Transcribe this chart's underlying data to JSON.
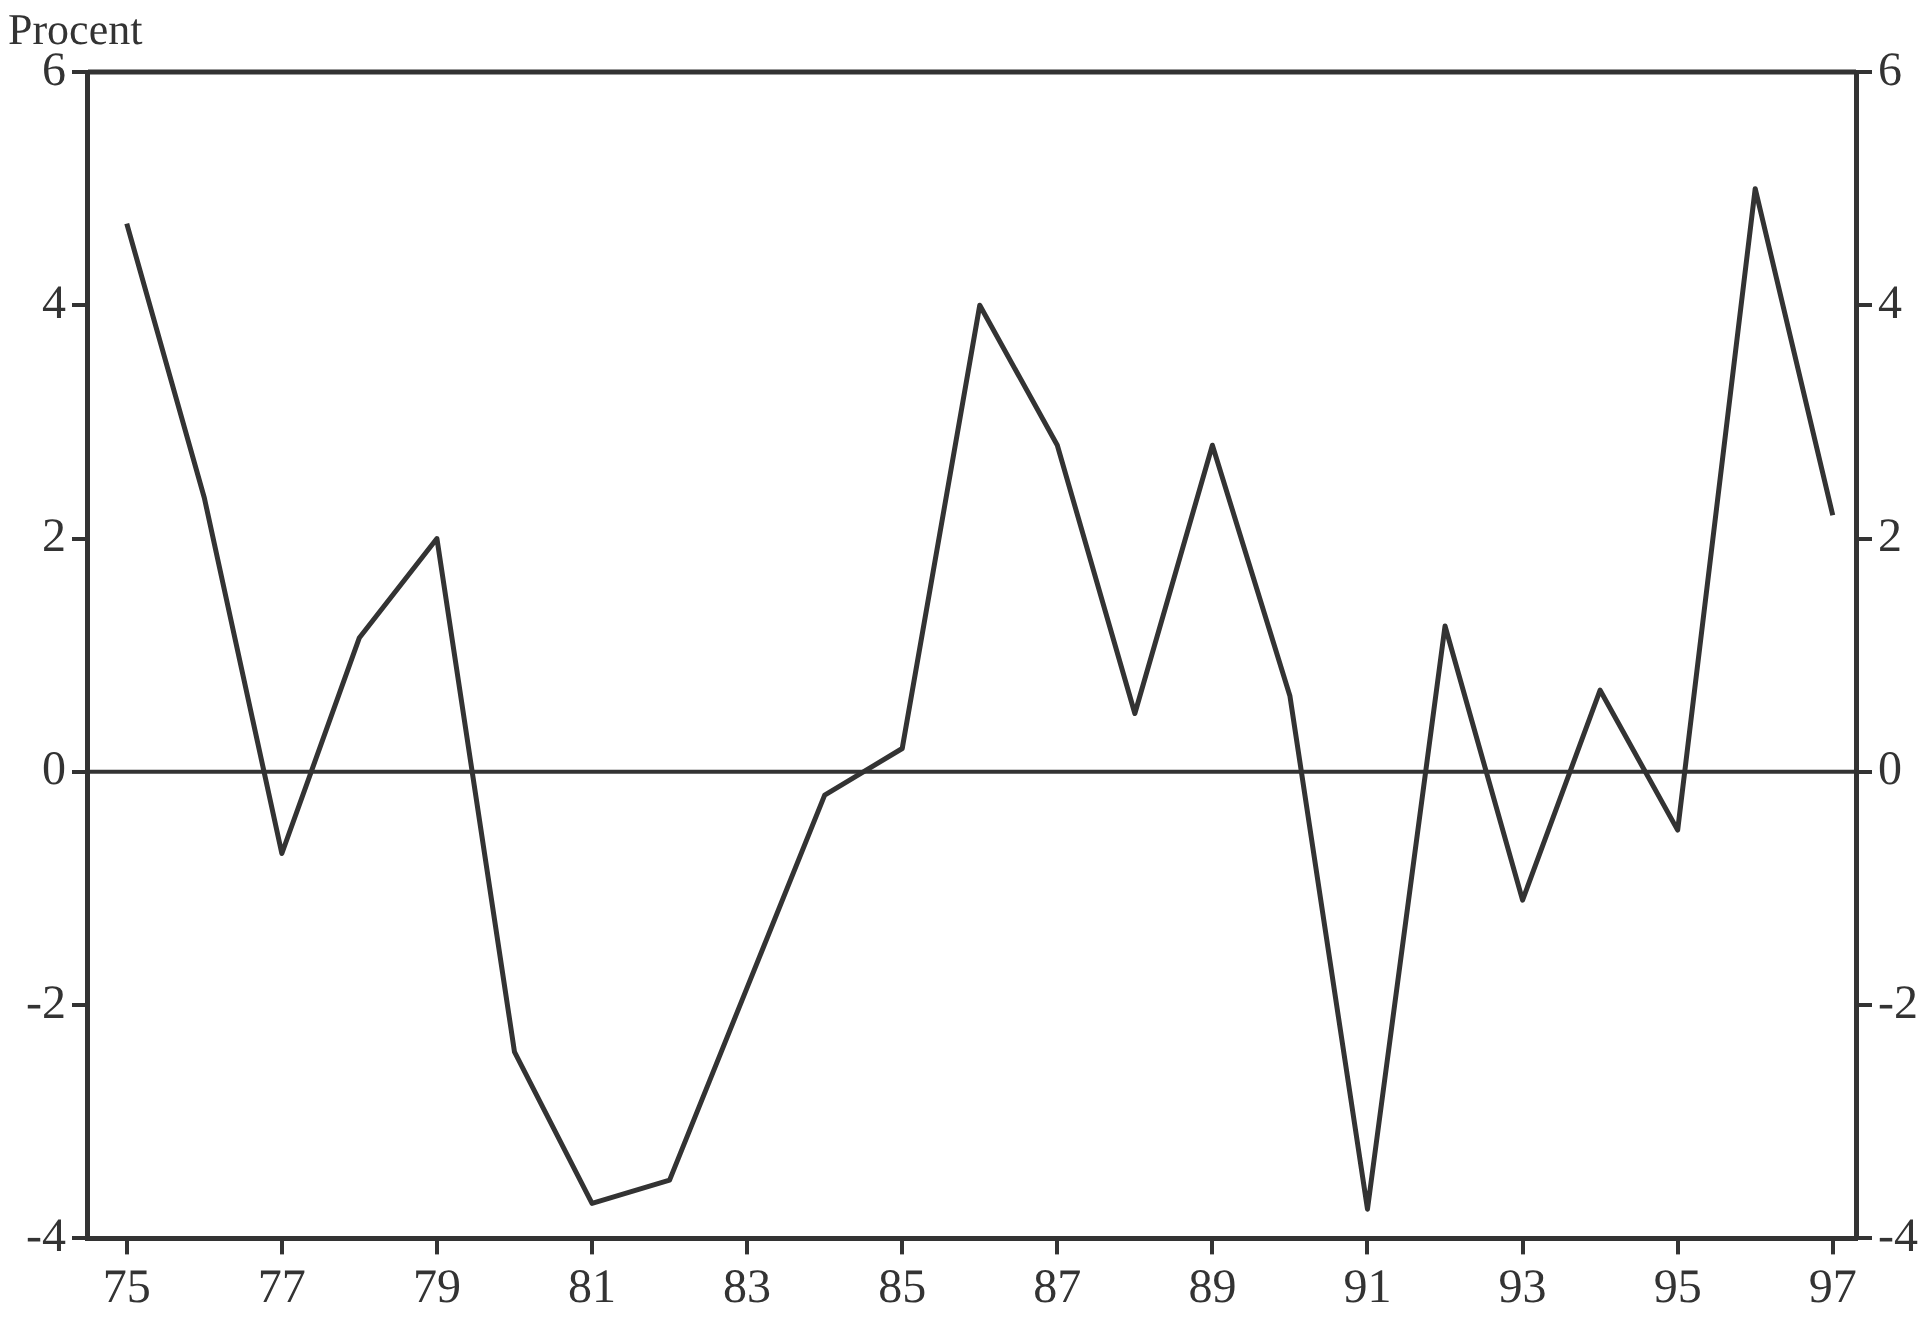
{
  "chart_data": {
    "type": "line",
    "ylabel": "Procent",
    "x": [
      75,
      76,
      77,
      78,
      79,
      80,
      81,
      82,
      83,
      84,
      85,
      86,
      87,
      88,
      89,
      90,
      91,
      92,
      93,
      94,
      95,
      96,
      97
    ],
    "series": [
      {
        "color": "#333333",
        "values": [
          4.7,
          2.35,
          -0.7,
          1.15,
          2.0,
          -2.4,
          -3.7,
          -3.5,
          -1.85,
          -0.2,
          0.2,
          4.0,
          2.8,
          0.5,
          2.8,
          0.65,
          -3.75,
          1.25,
          -1.1,
          0.7,
          -0.5,
          5.0,
          2.2
        ]
      }
    ],
    "xlim": [
      74.5,
      97.3
    ],
    "xticks": [
      75,
      77,
      79,
      81,
      83,
      85,
      87,
      89,
      91,
      93,
      95,
      97
    ],
    "ylim": [
      -4,
      6
    ],
    "yticks": [
      -4,
      -2,
      0,
      2,
      4,
      6
    ],
    "y2lim": [
      -4,
      6
    ],
    "y2ticks": [
      -4,
      -2,
      0,
      2,
      4,
      6
    ],
    "ref_lines": [
      {
        "axis": "y",
        "value": 0,
        "color": "#333333"
      }
    ],
    "grid": false,
    "legend": false,
    "marker": "none",
    "line_style": "solid"
  }
}
